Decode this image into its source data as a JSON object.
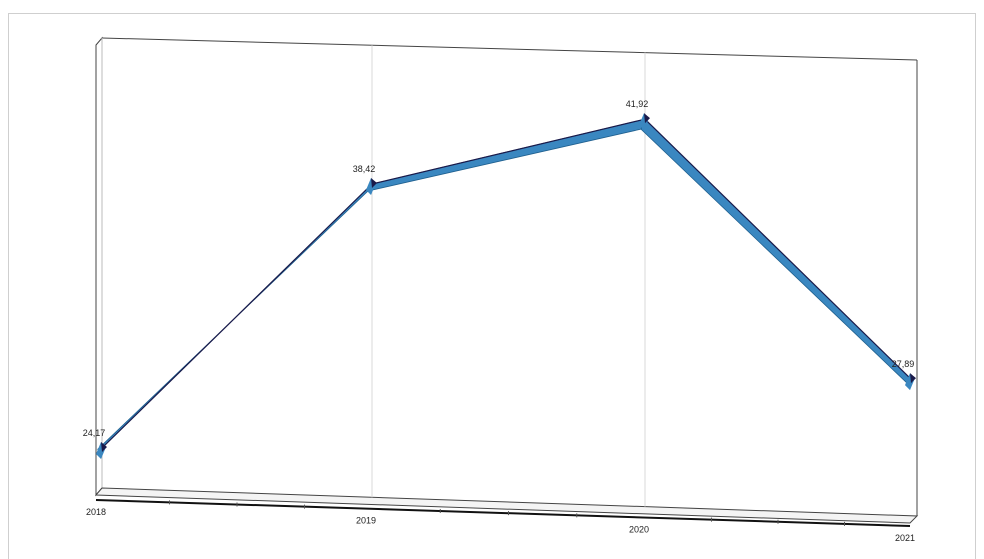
{
  "chart_data": {
    "type": "line",
    "categories": [
      "2018",
      "2019",
      "2020",
      "2021"
    ],
    "series": [
      {
        "values": [
          24.17,
          38.42,
          41.92,
          27.89
        ]
      }
    ],
    "data_labels": [
      "24,17",
      "38,42",
      "41,92",
      "27,89"
    ],
    "title": "",
    "xlabel": "",
    "ylabel": "",
    "grid": "vertical",
    "legend": "none",
    "colors": {
      "ribbon": "#3a87c0",
      "ribbon_edge": "#1e5f8e",
      "cap": "#1a1a4a",
      "line": "#1a1a4a",
      "grid": "#d9d9d9",
      "frame": "#333333"
    }
  }
}
